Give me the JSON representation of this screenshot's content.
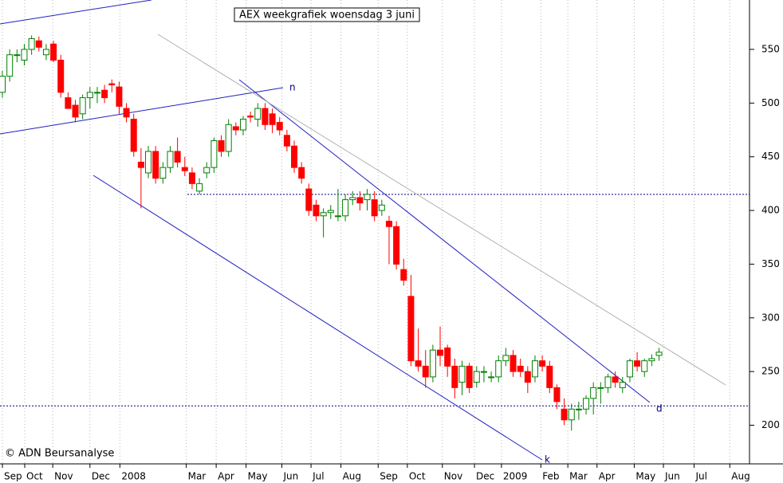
{
  "chart_data": {
    "type": "candlestick",
    "title": "AEX weekgrafiek woensdag 3 juni",
    "source": "© ADN Beursanalyse",
    "line_labels": [
      "n",
      "d",
      "k"
    ],
    "up_color": "#008000",
    "down_color": "#ff0000",
    "hlines": [
      415,
      218
    ],
    "hline_color": "#000080",
    "xlim": [
      -0.33,
      102.4
    ],
    "xticks": [
      {
        "value": 0,
        "label": "Sep"
      },
      {
        "value": 3.06,
        "label": "Oct"
      },
      {
        "value": 6.9,
        "label": "Nov"
      },
      {
        "value": 12.0,
        "label": "Dec"
      },
      {
        "value": 16.1,
        "label": "2008"
      },
      {
        "value": 25.2,
        "label": "Mar"
      },
      {
        "value": 29.3,
        "label": "Apr"
      },
      {
        "value": 33.4,
        "label": "May"
      },
      {
        "value": 38.3,
        "label": "Jun"
      },
      {
        "value": 42.3,
        "label": "Jul"
      },
      {
        "value": 46.4,
        "label": "Aug"
      },
      {
        "value": 51.5,
        "label": "Sep"
      },
      {
        "value": 55.5,
        "label": "Oct"
      },
      {
        "value": 60.3,
        "label": "Nov"
      },
      {
        "value": 64.7,
        "label": "Dec"
      },
      {
        "value": 68.4,
        "label": "2009"
      },
      {
        "value": 73.8,
        "label": "Feb"
      },
      {
        "value": 77.5,
        "label": "Mar"
      },
      {
        "value": 81.5,
        "label": "Apr"
      },
      {
        "value": 86.6,
        "label": "May"
      },
      {
        "value": 90.6,
        "label": "Jun"
      },
      {
        "value": 94.8,
        "label": "Jul"
      },
      {
        "value": 99.7,
        "label": "Aug"
      }
    ],
    "ylim": [
      164,
      596
    ],
    "yticks": [
      200,
      250,
      300,
      350,
      400,
      450,
      500,
      550
    ],
    "open": [
      510,
      525,
      545,
      540,
      550,
      558,
      545,
      555,
      540,
      505,
      498,
      490,
      505,
      510,
      512,
      518,
      515,
      495,
      485,
      445,
      435,
      455,
      430,
      440,
      455,
      440,
      435,
      418,
      435,
      440,
      465,
      455,
      478,
      475,
      488,
      485,
      495,
      490,
      482,
      470,
      460,
      440,
      420,
      405,
      395,
      398,
      395,
      395,
      410,
      412,
      410,
      410,
      400,
      390,
      385,
      345,
      320,
      260,
      255,
      245,
      270,
      272,
      255,
      240,
      255,
      240,
      250,
      245,
      245,
      260,
      265,
      255,
      250,
      245,
      260,
      255,
      235,
      215,
      205,
      215,
      215,
      225,
      235,
      235,
      245,
      235,
      245,
      260,
      250,
      260,
      265
    ],
    "high": [
      530,
      550,
      550,
      555,
      563,
      562,
      555,
      558,
      545,
      510,
      503,
      508,
      515,
      515,
      517,
      522,
      520,
      500,
      490,
      458,
      460,
      460,
      445,
      460,
      468,
      450,
      440,
      430,
      445,
      468,
      470,
      485,
      482,
      488,
      492,
      500,
      500,
      495,
      487,
      475,
      465,
      445,
      425,
      410,
      402,
      405,
      420,
      415,
      418,
      418,
      420,
      418,
      410,
      395,
      390,
      355,
      340,
      290,
      270,
      275,
      292,
      275,
      262,
      260,
      258,
      255,
      255,
      250,
      265,
      272,
      270,
      262,
      255,
      265,
      265,
      260,
      238,
      225,
      220,
      222,
      228,
      240,
      240,
      248,
      250,
      245,
      262,
      268,
      262,
      266,
      272
    ],
    "low": [
      505,
      520,
      538,
      535,
      545,
      548,
      540,
      538,
      505,
      495,
      482,
      485,
      495,
      500,
      500,
      510,
      490,
      482,
      450,
      402,
      430,
      425,
      425,
      435,
      440,
      432,
      420,
      415,
      430,
      435,
      450,
      450,
      470,
      470,
      482,
      478,
      475,
      472,
      470,
      455,
      435,
      425,
      395,
      390,
      375,
      392,
      390,
      390,
      405,
      400,
      400,
      390,
      395,
      350,
      345,
      330,
      255,
      250,
      235,
      240,
      255,
      245,
      225,
      228,
      230,
      235,
      240,
      240,
      240,
      255,
      245,
      245,
      230,
      240,
      250,
      230,
      215,
      200,
      195,
      205,
      210,
      210,
      220,
      230,
      235,
      230,
      240,
      250,
      245,
      255,
      260
    ],
    "close": [
      525,
      545,
      545,
      550,
      560,
      552,
      550,
      540,
      510,
      495,
      487,
      505,
      510,
      510,
      505,
      517,
      497,
      487,
      455,
      440,
      455,
      430,
      440,
      455,
      445,
      437,
      425,
      425,
      440,
      465,
      455,
      480,
      475,
      485,
      487,
      495,
      480,
      480,
      475,
      460,
      440,
      430,
      400,
      395,
      398,
      400,
      395,
      410,
      412,
      407,
      415,
      395,
      405,
      385,
      350,
      335,
      260,
      255,
      245,
      270,
      265,
      255,
      235,
      255,
      235,
      250,
      250,
      245,
      260,
      265,
      250,
      250,
      240,
      260,
      255,
      235,
      222,
      205,
      215,
      215,
      225,
      235,
      235,
      245,
      240,
      240,
      260,
      255,
      260,
      262,
      268
    ]
  }
}
